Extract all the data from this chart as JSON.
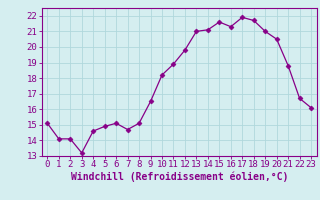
{
  "x": [
    0,
    1,
    2,
    3,
    4,
    5,
    6,
    7,
    8,
    9,
    10,
    11,
    12,
    13,
    14,
    15,
    16,
    17,
    18,
    19,
    20,
    21,
    22,
    23
  ],
  "y": [
    15.1,
    14.1,
    14.1,
    13.2,
    14.6,
    14.9,
    15.1,
    14.7,
    15.1,
    16.5,
    18.2,
    18.9,
    19.8,
    21.0,
    21.1,
    21.6,
    21.3,
    21.9,
    21.7,
    21.0,
    20.5,
    18.8,
    16.7,
    16.1
  ],
  "line_color": "#880088",
  "marker": "D",
  "markersize": 2.5,
  "linewidth": 0.9,
  "xlabel": "Windchill (Refroidissement éolien,°C)",
  "xlabel_fontsize": 7,
  "xlim": [
    -0.5,
    23.5
  ],
  "ylim": [
    13,
    22.5
  ],
  "yticks": [
    13,
    14,
    15,
    16,
    17,
    18,
    19,
    20,
    21,
    22
  ],
  "xticks": [
    0,
    1,
    2,
    3,
    4,
    5,
    6,
    7,
    8,
    9,
    10,
    11,
    12,
    13,
    14,
    15,
    16,
    17,
    18,
    19,
    20,
    21,
    22,
    23
  ],
  "xtick_labels": [
    "0",
    "1",
    "2",
    "3",
    "4",
    "5",
    "6",
    "7",
    "8",
    "9",
    "10",
    "11",
    "12",
    "13",
    "14",
    "15",
    "16",
    "17",
    "18",
    "19",
    "20",
    "21",
    "22",
    "23"
  ],
  "ytick_labels": [
    "13",
    "14",
    "15",
    "16",
    "17",
    "18",
    "19",
    "20",
    "21",
    "22"
  ],
  "bg_color": "#d5eef0",
  "grid_color": "#b0d8dc",
  "tick_fontsize": 6.5,
  "spine_color": "#880088"
}
